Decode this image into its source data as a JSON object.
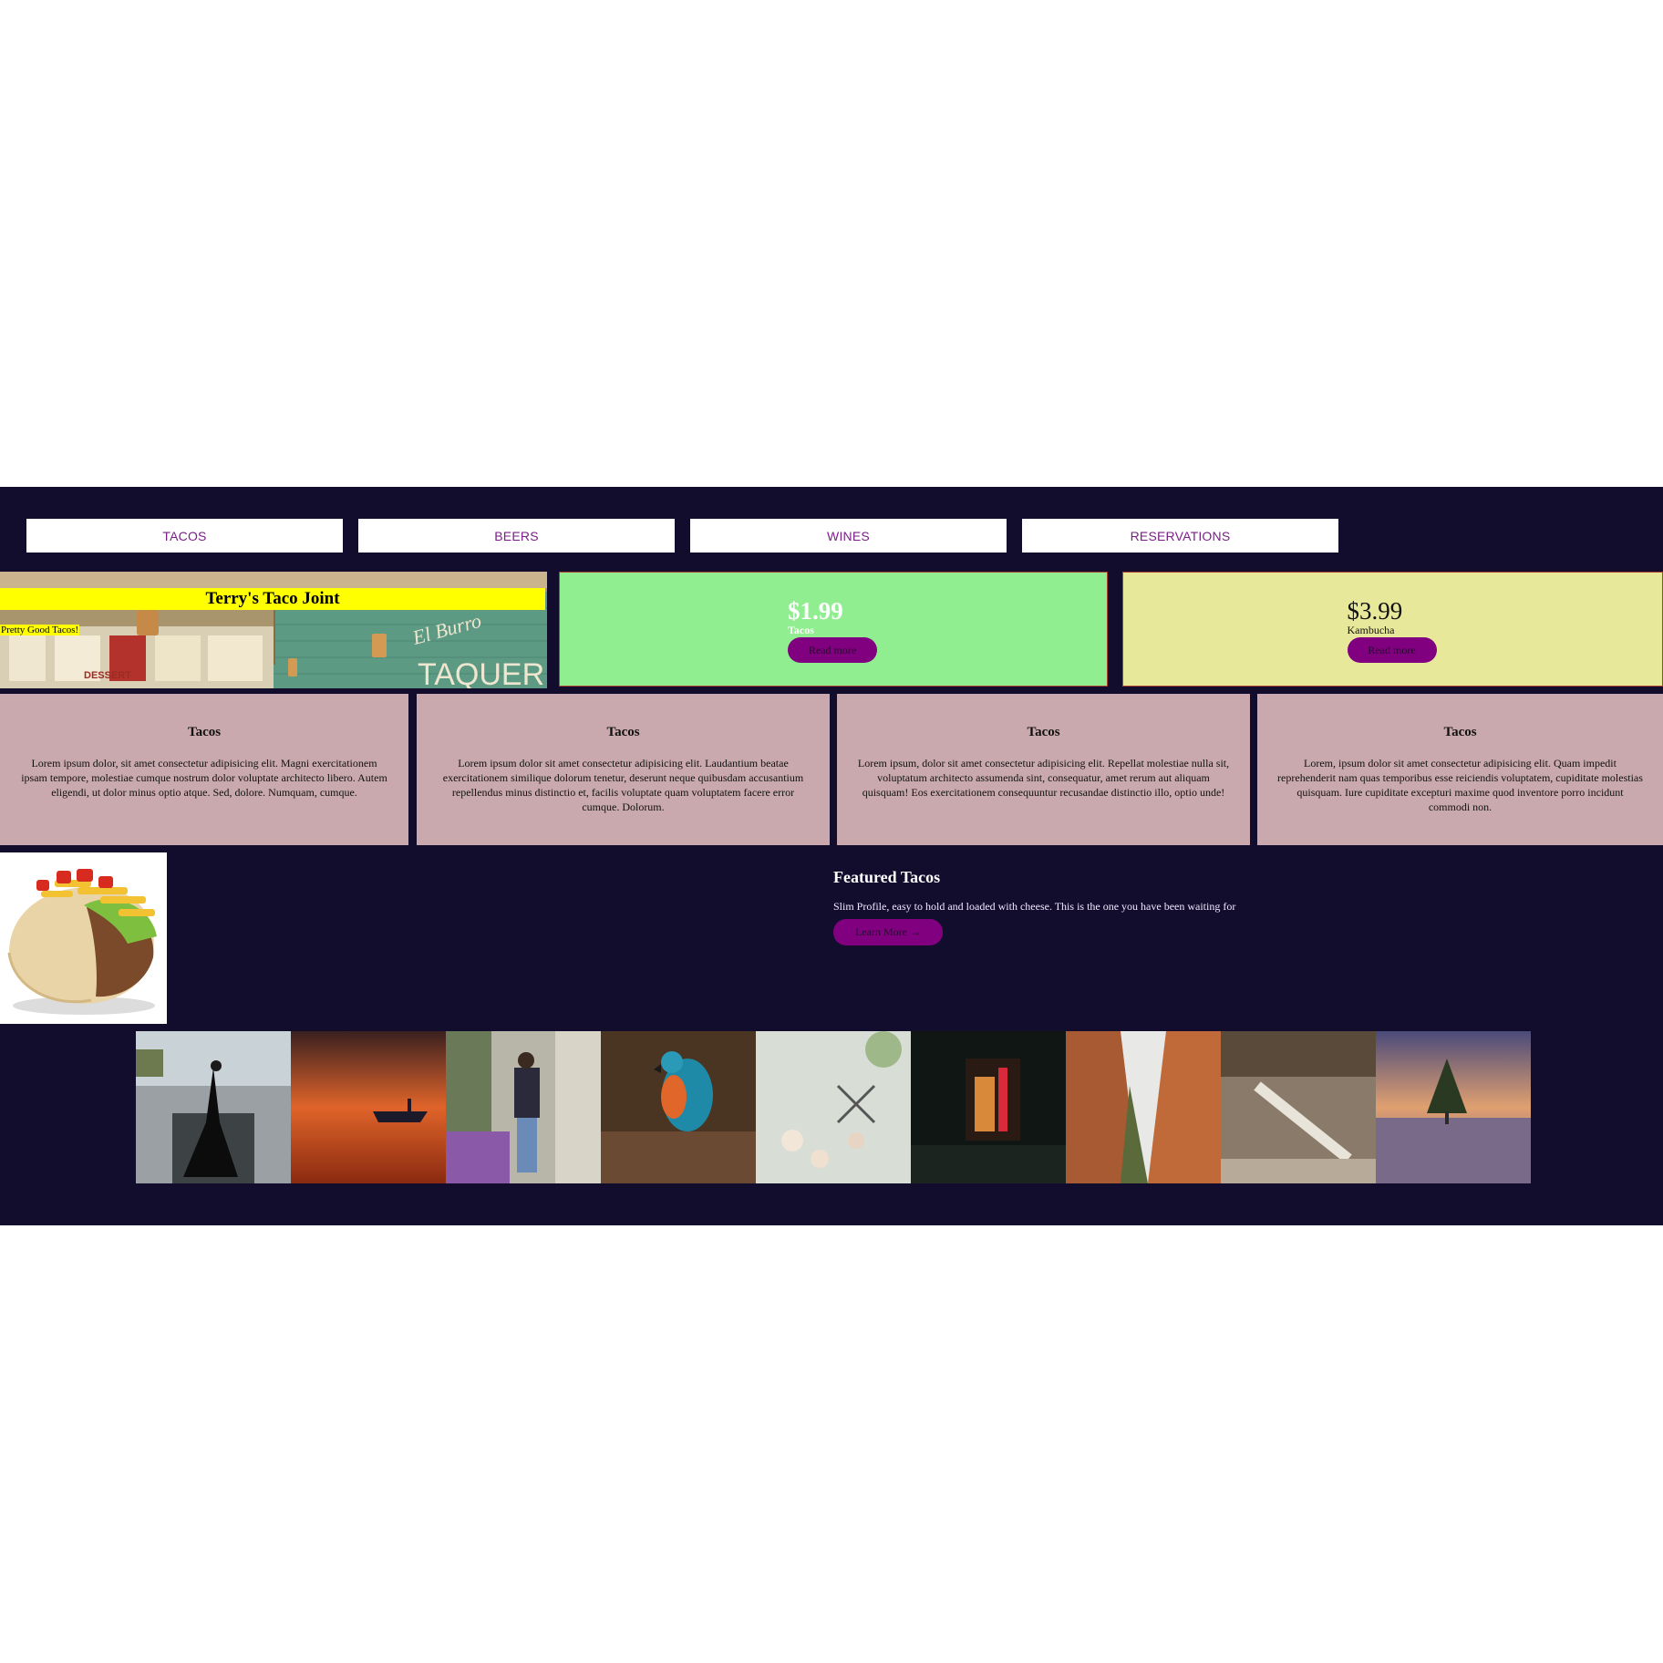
{
  "nav": {
    "items": [
      "TACOS",
      "BEERS",
      "WINES",
      "RESERVATIONS"
    ]
  },
  "hero": {
    "title": "Terry's Taco Joint",
    "subtitle": "Pretty Good Tacos!",
    "sign_text": "El Burro",
    "sign_text2": "TAQUERIA",
    "menu_word": "DESSERT"
  },
  "prices": [
    {
      "amount": "$1.99",
      "label": "Tacos",
      "button": "Read more",
      "bg": "#90ee90"
    },
    {
      "amount": "$3.99",
      "label": "Kambucha",
      "button": "Read more",
      "bg": "#e8e89a"
    }
  ],
  "info_cards": [
    {
      "title": "Tacos",
      "text": "Lorem ipsum dolor, sit amet consectetur adipisicing elit. Magni exercitationem ipsam tempore, molestiae cumque nostrum dolor voluptate architecto libero. Autem eligendi, ut dolor minus optio atque. Sed, dolore. Numquam, cumque."
    },
    {
      "title": "Tacos",
      "text": "Lorem ipsum dolor sit amet consectetur adipisicing elit. Laudantium beatae exercitationem similique dolorum tenetur, deserunt neque quibusdam accusantium repellendus minus distinctio et, facilis voluptate quam voluptatem facere error cumque. Dolorum."
    },
    {
      "title": "Tacos",
      "text": "Lorem ipsum, dolor sit amet consectetur adipisicing elit. Repellat molestiae nulla sit, voluptatum architecto assumenda sint, consequatur, amet rerum aut aliquam quisquam! Eos exercitationem consequuntur recusandae distinctio illo, optio unde!"
    },
    {
      "title": "Tacos",
      "text": "Lorem, ipsum dolor sit amet consectetur adipisicing elit. Quam impedit reprehenderit nam quas temporibus esse reiciendis voluptatem, cupiditate molestias quisquam. Iure cupiditate excepturi maxime quod inventore porro incidunt commodi non."
    }
  ],
  "featured": {
    "title": "Featured Tacos",
    "text": "Slim Profile, easy to hold and loaded with cheese. This is the one you have been waiting for",
    "button": "Learn More →"
  },
  "gallery": {
    "photos": [
      "dancer",
      "sunset-boat",
      "girl-graffiti",
      "parrot",
      "flowers-scissors",
      "storefront-night",
      "canyon",
      "museum-skeleton",
      "tree-sunset"
    ]
  },
  "colors": {
    "page_bg": "#120c2d",
    "accent": "#800080",
    "nav_text": "#7a1f86",
    "card_bg": "#c9a9ad",
    "hero_bar": "#ffff00"
  }
}
